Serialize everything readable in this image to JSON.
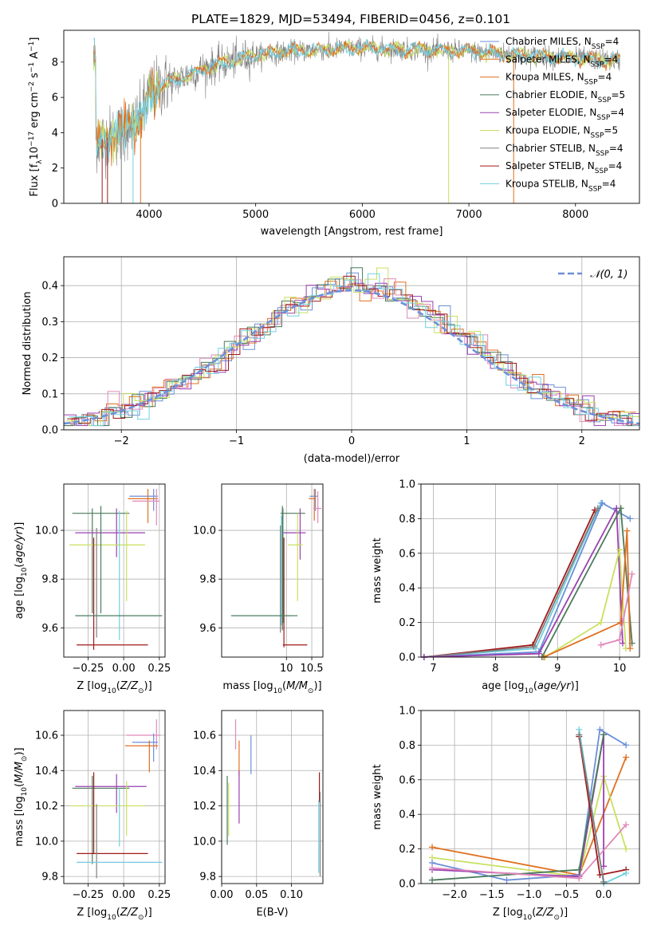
{
  "figure": {
    "title": "PLATE=1829, MJD=53494, FIBERID=0456, z=0.101"
  },
  "colors": {
    "c1": "#6a8fd8",
    "c2": "#e07020",
    "c3": "#e088b8",
    "c4": "#4a7a5a",
    "c5": "#9a40b0",
    "c6": "#c8e060",
    "c7": "#808080",
    "c8": "#a01818",
    "c9": "#70d0e0",
    "grid": "#b0b0b0",
    "gauss": "#6a8fd8"
  },
  "chart_data": [
    {
      "id": "spectrum",
      "type": "line",
      "xlabel": "wavelength [Angstrom, rest frame]",
      "ylabel": "Flux [f_λ 10^-17 erg cm^-2 s^-1 A^-1]",
      "xlim": [
        3200,
        8600
      ],
      "ylim": [
        0,
        9.8
      ],
      "xticks": [
        4000,
        5000,
        6000,
        7000,
        8000
      ],
      "yticks": [
        0,
        2,
        4,
        6,
        8
      ],
      "grid": false,
      "legend_position": "lower-right",
      "legend": [
        {
          "base": "Chabrier MILES, N",
          "sub": "SSP",
          "tail": "=4"
        },
        {
          "base": "Salpeter MILES, N",
          "sub": "SSP",
          "tail": "=4"
        },
        {
          "base": "Kroupa MILES, N",
          "sub": "SSP",
          "tail": "=4"
        },
        {
          "base": "Chabrier ELODIE, N",
          "sub": "SSP",
          "tail": "=5"
        },
        {
          "base": "Salpeter ELODIE, N",
          "sub": "SSP",
          "tail": "=4"
        },
        {
          "base": "Kroupa ELODIE, N",
          "sub": "SSP",
          "tail": "=5"
        },
        {
          "base": "Chabrier STELIB, N",
          "sub": "SSP",
          "tail": "=4"
        },
        {
          "base": "Salpeter STELIB, N",
          "sub": "SSP",
          "tail": "=4"
        },
        {
          "base": "Kroupa STELIB, N",
          "sub": "SSP",
          "tail": "=4"
        }
      ],
      "continuum": {
        "x": [
          3500,
          3700,
          3900,
          4000,
          4100,
          4300,
          4500,
          4800,
          5000,
          5300,
          5600,
          6000,
          6500,
          7000,
          7500,
          8000,
          8400
        ],
        "y": [
          3.5,
          3.9,
          4.6,
          6.2,
          6.6,
          7.1,
          7.6,
          8.1,
          8.4,
          8.6,
          8.7,
          8.8,
          8.7,
          8.6,
          8.4,
          8.2,
          8.1
        ]
      }
    },
    {
      "id": "residuals",
      "type": "histogram",
      "xlabel": "(data-model)/error",
      "ylabel": "Normed distribution",
      "xlim": [
        -2.5,
        2.5
      ],
      "ylim": [
        0,
        0.48
      ],
      "xticks": [
        -2,
        -1,
        0,
        1,
        2
      ],
      "yticks": [
        0.0,
        0.1,
        0.2,
        0.3,
        0.4
      ],
      "grid": true,
      "legend_position": "upper-right",
      "legend": [
        "𝒩(0, 1)"
      ],
      "gaussian": {
        "mean": 0,
        "sigma": 1
      }
    },
    {
      "id": "age-vs-Z",
      "type": "errorbar",
      "xlabel": "Z [log10(Z/Z_sun)]",
      "ylabel": "age [log10(age/yr)]",
      "xlim": [
        -0.42,
        0.29
      ],
      "ylim": [
        9.48,
        10.19
      ],
      "xticks": [
        -0.25,
        0.0,
        0.25
      ],
      "xticklabels": [
        "−0.25",
        "0.00",
        "0.25"
      ],
      "yticks": [
        9.6,
        9.8,
        10.0
      ],
      "grid": true,
      "points": [
        {
          "c": "c1",
          "x": 0.21,
          "y": 10.14,
          "xlo": 0.04,
          "xhi": 0.24,
          "ylo": 10.08,
          "yhi": 10.17
        },
        {
          "c": "c2",
          "x": 0.17,
          "y": 10.13,
          "xlo": 0.03,
          "xhi": 0.24,
          "ylo": 10.03,
          "yhi": 10.17
        },
        {
          "c": "c3",
          "x": 0.23,
          "y": 10.12,
          "xlo": 0.06,
          "xhi": 0.25,
          "ylo": 10.02,
          "yhi": 10.17
        },
        {
          "c": "c4",
          "x": -0.22,
          "y": 10.07,
          "xlo": -0.36,
          "xhi": 0.04,
          "ylo": 9.66,
          "yhi": 10.09
        },
        {
          "c": "c5",
          "x": -0.05,
          "y": 9.99,
          "xlo": -0.34,
          "xhi": 0.15,
          "ylo": 9.89,
          "yhi": 10.09
        },
        {
          "c": "c6",
          "x": 0.02,
          "y": 9.94,
          "xlo": -0.38,
          "xhi": 0.15,
          "ylo": 9.71,
          "yhi": 10.08
        },
        {
          "c": "c7",
          "x": -0.19,
          "y": 9.65,
          "xlo": -0.33,
          "xhi": 0.27,
          "ylo": 9.56,
          "yhi": 10.01
        },
        {
          "c": "c8",
          "x": -0.21,
          "y": 9.53,
          "xlo": -0.33,
          "xhi": 0.17,
          "ylo": 9.51,
          "yhi": 9.97
        },
        {
          "c": "c9",
          "x": -0.03,
          "y": 9.65,
          "xlo": -0.34,
          "xhi": 0.26,
          "ylo": 9.55,
          "yhi": 10.08
        },
        {
          "c": "c4",
          "x": -0.16,
          "y": 9.65,
          "xlo": -0.34,
          "xhi": 0.27,
          "ylo": 9.66,
          "yhi": 10.1
        }
      ]
    },
    {
      "id": "age-vs-mass",
      "type": "errorbar",
      "xlabel": "mass [log10(M/M_sun)]",
      "ylabel": "",
      "xlim": [
        8.72,
        10.72
      ],
      "ylim": [
        9.48,
        10.19
      ],
      "xticks": [
        10.0,
        10.5
      ],
      "yticks": [
        9.6,
        9.8,
        10.0
      ],
      "grid": true,
      "points": [
        {
          "c": "c1",
          "x": 10.57,
          "y": 10.14,
          "xlo": 10.46,
          "xhi": 10.61,
          "ylo": 10.08,
          "yhi": 10.17
        },
        {
          "c": "c2",
          "x": 10.55,
          "y": 10.13,
          "xlo": 10.44,
          "xhi": 10.58,
          "ylo": 10.04,
          "yhi": 10.17
        },
        {
          "c": "c3",
          "x": 10.62,
          "y": 10.09,
          "xlo": 10.53,
          "xhi": 10.69,
          "ylo": 10.03,
          "yhi": 10.16
        },
        {
          "c": "c4",
          "x": 9.93,
          "y": 10.07,
          "xlo": 9.88,
          "xhi": 10.37,
          "ylo": 9.62,
          "yhi": 10.09
        },
        {
          "c": "c5",
          "x": 10.27,
          "y": 9.99,
          "xlo": 9.94,
          "xhi": 10.38,
          "ylo": 9.88,
          "yhi": 10.09
        },
        {
          "c": "c6",
          "x": 10.22,
          "y": 9.94,
          "xlo": 10.03,
          "xhi": 10.32,
          "ylo": 9.71,
          "yhi": 10.07
        },
        {
          "c": "c7",
          "x": 9.88,
          "y": 9.65,
          "xlo": 8.92,
          "xhi": 10.16,
          "ylo": 9.58,
          "yhi": 10.02
        },
        {
          "c": "c8",
          "x": 9.95,
          "y": 9.53,
          "xlo": 9.93,
          "xhi": 10.41,
          "ylo": 9.52,
          "yhi": 9.97
        },
        {
          "c": "c9",
          "x": 9.9,
          "y": 9.65,
          "xlo": 8.9,
          "xhi": 10.12,
          "ylo": 9.61,
          "yhi": 10.06
        },
        {
          "c": "c4",
          "x": 9.92,
          "y": 9.65,
          "xlo": 8.91,
          "xhi": 10.22,
          "ylo": 9.59,
          "yhi": 10.1
        }
      ]
    },
    {
      "id": "weight-vs-age",
      "type": "line",
      "xlabel": "age [log10(age/yr)]",
      "ylabel": "mass weight",
      "xlim": [
        6.8,
        10.32
      ],
      "ylim": [
        0,
        1.0
      ],
      "xticks": [
        7,
        8,
        9,
        10
      ],
      "yticks": [
        0.0,
        0.2,
        0.4,
        0.6,
        0.8,
        1.0
      ],
      "grid": true,
      "series": [
        {
          "c": "c8",
          "x": [
            6.85,
            8.6,
            9.6
          ],
          "y": [
            0.0,
            0.07,
            0.85
          ]
        },
        {
          "c": "c9",
          "x": [
            6.85,
            8.65,
            9.7
          ],
          "y": [
            0.0,
            0.05,
            0.89
          ]
        },
        {
          "c": "c1",
          "x": [
            6.85,
            8.7,
            9.72,
            10.17
          ],
          "y": [
            0.0,
            0.03,
            0.89,
            0.8
          ]
        },
        {
          "c": "c7",
          "x": [
            6.85,
            8.62,
            9.65
          ],
          "y": [
            0.0,
            0.06,
            0.86
          ]
        },
        {
          "c": "c5",
          "x": [
            6.85,
            8.7,
            9.95,
            10.05
          ],
          "y": [
            0.0,
            0.02,
            0.86,
            0.08
          ]
        },
        {
          "c": "c4",
          "x": [
            8.75,
            10.02,
            10.2
          ],
          "y": [
            0.0,
            0.86,
            0.08
          ]
        },
        {
          "c": "c6",
          "x": [
            8.8,
            9.7,
            10.0,
            10.1
          ],
          "y": [
            0.0,
            0.2,
            0.62,
            0.05
          ]
        },
        {
          "c": "c2",
          "x": [
            8.78,
            10.02,
            10.12,
            10.17
          ],
          "y": [
            0.0,
            0.2,
            0.73,
            0.05
          ]
        },
        {
          "c": "c3",
          "x": [
            9.7,
            10.0,
            10.2
          ],
          "y": [
            0.07,
            0.1,
            0.48
          ]
        }
      ]
    },
    {
      "id": "mass-vs-Z",
      "type": "errorbar",
      "xlabel": "Z [log10(Z/Z_sun)]",
      "ylabel": "mass [log10(M/M_sun)]",
      "xlim": [
        -0.42,
        0.29
      ],
      "ylim": [
        9.76,
        10.74
      ],
      "xticks": [
        -0.25,
        0.0,
        0.25
      ],
      "xticklabels": [
        "−0.25",
        "0.00",
        "0.25"
      ],
      "yticks": [
        9.8,
        10.0,
        10.2,
        10.4,
        10.6
      ],
      "grid": true,
      "points": [
        {
          "c": "c3",
          "x": 0.23,
          "y": 10.6,
          "xlo": 0.02,
          "xhi": 0.26,
          "ylo": 10.52,
          "yhi": 10.69
        },
        {
          "c": "c1",
          "x": 0.21,
          "y": 10.56,
          "xlo": 0.06,
          "xhi": 0.24,
          "ylo": 10.45,
          "yhi": 10.61
        },
        {
          "c": "c2",
          "x": 0.18,
          "y": 10.54,
          "xlo": 0.01,
          "xhi": 0.24,
          "ylo": 10.39,
          "yhi": 10.57
        },
        {
          "c": "c5",
          "x": -0.05,
          "y": 10.31,
          "xlo": -0.34,
          "xhi": 0.16,
          "ylo": 10.16,
          "yhi": 10.38
        },
        {
          "c": "c4",
          "x": -0.22,
          "y": 10.3,
          "xlo": -0.36,
          "xhi": 0.04,
          "ylo": 9.87,
          "yhi": 10.37
        },
        {
          "c": "c6",
          "x": 0.02,
          "y": 10.2,
          "xlo": -0.38,
          "xhi": 0.15,
          "ylo": 10.03,
          "yhi": 10.34
        },
        {
          "c": "c8",
          "x": -0.21,
          "y": 9.93,
          "xlo": -0.33,
          "xhi": 0.17,
          "ylo": 9.93,
          "yhi": 10.39
        },
        {
          "c": "c7",
          "x": -0.19,
          "y": 9.88,
          "xlo": -0.33,
          "xhi": 0.27,
          "ylo": 9.79,
          "yhi": 10.21
        },
        {
          "c": "c9",
          "x": -0.03,
          "y": 9.88,
          "xlo": -0.33,
          "xhi": 0.27,
          "ylo": 9.97,
          "yhi": 10.3
        }
      ]
    },
    {
      "id": "mass-vs-EBV",
      "type": "errorbar",
      "xlabel": "E(B-V)",
      "ylabel": "",
      "xlim": [
        0.0,
        0.145
      ],
      "ylim": [
        9.76,
        10.74
      ],
      "xticks": [
        0.0,
        0.05,
        0.1
      ],
      "xticklabels": [
        "0.00",
        "0.05",
        "0.10"
      ],
      "yticks": [
        9.8,
        10.0,
        10.2,
        10.4,
        10.6
      ],
      "grid": true,
      "points": [
        {
          "c": "c3",
          "x": 0.02,
          "y": 10.6,
          "ylo": 10.52,
          "yhi": 10.69
        },
        {
          "c": "c1",
          "x": 0.042,
          "y": 10.56,
          "ylo": 10.38,
          "yhi": 10.6
        },
        {
          "c": "c2",
          "x": 0.025,
          "y": 10.54,
          "ylo": 10.37,
          "yhi": 10.57
        },
        {
          "c": "c5",
          "x": 0.025,
          "y": 10.3,
          "ylo": 10.1,
          "yhi": 10.4
        },
        {
          "c": "c6",
          "x": 0.01,
          "y": 10.2,
          "ylo": 10.03,
          "yhi": 10.33
        },
        {
          "c": "c4",
          "x": 0.008,
          "y": 10.2,
          "ylo": 9.98,
          "yhi": 10.37
        },
        {
          "c": "c8",
          "x": 0.14,
          "y": 10.3,
          "ylo": 10.22,
          "yhi": 10.39
        },
        {
          "c": "c7",
          "x": 0.141,
          "y": 10.0,
          "ylo": 9.8,
          "yhi": 10.28
        },
        {
          "c": "c9",
          "x": 0.139,
          "y": 9.9,
          "ylo": 9.82,
          "yhi": 10.23
        }
      ]
    },
    {
      "id": "weight-vs-Z",
      "type": "line",
      "xlabel": "Z [log10(Z/Z_sun)]",
      "ylabel": "mass weight",
      "xlim": [
        -2.45,
        0.48
      ],
      "ylim": [
        0,
        1.0
      ],
      "xticks": [
        -2.0,
        -1.5,
        -1.0,
        -0.5,
        0.0
      ],
      "xticklabels": [
        "−2.0",
        "−1.5",
        "−1.0",
        "−0.5",
        "0.0"
      ],
      "yticks": [
        0.0,
        0.2,
        0.4,
        0.6,
        0.8,
        1.0
      ],
      "grid": true,
      "series": [
        {
          "c": "c2",
          "x": [
            -2.3,
            -0.33,
            0.3
          ],
          "y": [
            0.21,
            0.05,
            0.73
          ]
        },
        {
          "c": "c6",
          "x": [
            -2.3,
            -0.33,
            0.0,
            0.3
          ],
          "y": [
            0.15,
            0.04,
            0.62,
            0.2
          ]
        },
        {
          "c": "c1",
          "x": [
            -2.3,
            -1.3,
            -0.33,
            -0.05,
            0.3
          ],
          "y": [
            0.12,
            0.02,
            0.05,
            0.89,
            0.8
          ]
        },
        {
          "c": "c5",
          "x": [
            -2.3,
            -0.33,
            0.0,
            0.0
          ],
          "y": [
            0.08,
            0.04,
            0.86,
            0.1
          ]
        },
        {
          "c": "c4",
          "x": [
            -2.3,
            -0.33,
            0.0
          ],
          "y": [
            0.02,
            0.08,
            0.86
          ]
        },
        {
          "c": "c3",
          "x": [
            -2.3,
            -0.33,
            0.3
          ],
          "y": [
            0.09,
            0.03,
            0.34
          ]
        },
        {
          "c": "c8",
          "x": [
            -0.33,
            -0.05,
            0.3
          ],
          "y": [
            0.85,
            0.05,
            0.08
          ]
        },
        {
          "c": "c9",
          "x": [
            -0.33,
            0.0,
            0.3
          ],
          "y": [
            0.89,
            0.0,
            0.06
          ]
        },
        {
          "c": "c7",
          "x": [
            -0.33,
            0.0
          ],
          "y": [
            0.86,
            0.01
          ]
        }
      ]
    }
  ]
}
